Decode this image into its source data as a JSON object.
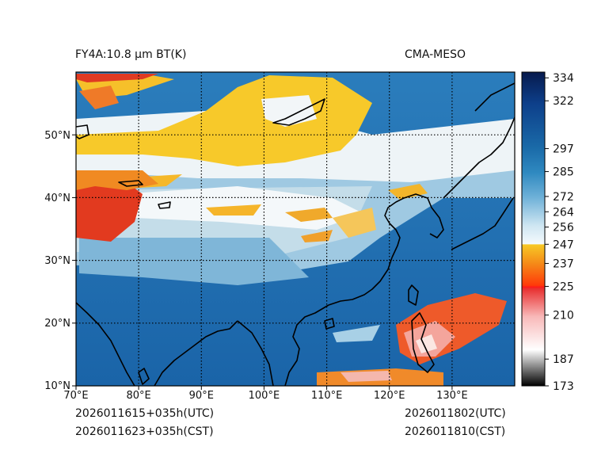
{
  "header": {
    "left_title": "FY4A:10.8 μm BT(K)",
    "right_title": "CMA-MESO"
  },
  "footer": {
    "init_utc": "2026011615+035h(UTC)",
    "init_cst": "2026011623+035h(CST)",
    "valid_utc": "2026011802(UTC)",
    "valid_cst": "2026011810(CST)"
  },
  "map": {
    "lon_range": [
      70,
      140
    ],
    "lat_range": [
      10,
      60
    ],
    "lon_ticks": [
      "70°E",
      "80°E",
      "90°E",
      "100°E",
      "110°E",
      "120°E",
      "130°E"
    ],
    "lat_ticks": [
      "10°N",
      "20°N",
      "30°N",
      "40°N",
      "50°N"
    ],
    "gridlines": "dotted"
  },
  "colorbar": {
    "range": [
      173,
      337
    ],
    "ticks": [
      "173",
      "187",
      "210",
      "225",
      "237",
      "247",
      "256",
      "264",
      "272",
      "285",
      "297",
      "322",
      "334"
    ]
  },
  "colors": {
    "ocean": "#1f6fb2",
    "warm_land": "#3f8fc4",
    "cold_cloud_white": "#f2f6f8",
    "high_cloud_yellow": "#f5c51e",
    "deep_cloud_orange": "#ef6a1a",
    "deep_cloud_red": "#d62418",
    "coastline": "#000000"
  }
}
